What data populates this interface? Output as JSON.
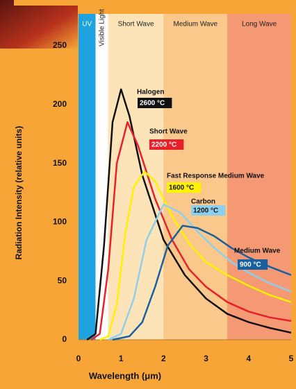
{
  "chart_data": {
    "type": "line",
    "y_label": "Radiation Intensity (relative units)",
    "x_label": "Wavelength (μm)",
    "xlim": [
      0,
      5
    ],
    "xticks": [
      0,
      1,
      2,
      3,
      4,
      5
    ],
    "ylim": [
      0,
      250
    ],
    "yticks": [
      0,
      50,
      100,
      150,
      200,
      250
    ],
    "bands": [
      {
        "label": "UV",
        "from": 0,
        "to": 0.4,
        "color": "#1ea3e0"
      },
      {
        "label": "Visible Light",
        "from": 0.4,
        "to": 0.7,
        "color": "#ffffff"
      },
      {
        "label": "Short Wave",
        "from": 0.7,
        "to": 2,
        "color": "#fde4b8"
      },
      {
        "label": "Medium Wave",
        "from": 2,
        "to": 3.5,
        "color": "#fbc88c"
      },
      {
        "label": "Long Wave",
        "from": 3.5,
        "to": 5,
        "color": "#f59874"
      }
    ],
    "series": [
      {
        "name": "Halogen",
        "temperature": "2600 °C",
        "color": "#111111",
        "x": [
          0.2,
          0.4,
          0.6,
          0.8,
          1.0,
          1.2,
          1.5,
          2.0,
          2.5,
          3.0,
          3.5,
          4.0,
          4.5,
          5.0
        ],
        "values": [
          0,
          5,
          80,
          185,
          213,
          190,
          140,
          85,
          55,
          35,
          22,
          15,
          10,
          6
        ]
      },
      {
        "name": "Short Wave",
        "temperature": "2200 °C",
        "color": "#e8202a",
        "x": [
          0.3,
          0.5,
          0.7,
          0.9,
          1.15,
          1.4,
          1.8,
          2.2,
          2.6,
          3.0,
          3.5,
          4.0,
          4.5,
          5.0
        ],
        "values": [
          0,
          5,
          60,
          150,
          185,
          165,
          120,
          85,
          60,
          45,
          32,
          24,
          19,
          16
        ]
      },
      {
        "name": "Fast Response Medium Wave",
        "temperature": "1600 °C",
        "color": "#fff200",
        "x": [
          0.5,
          0.7,
          0.9,
          1.1,
          1.3,
          1.55,
          1.8,
          2.2,
          2.6,
          3.0,
          3.5,
          4.0,
          4.5,
          5.0
        ],
        "values": [
          0,
          3,
          30,
          90,
          130,
          143,
          135,
          105,
          82,
          66,
          55,
          46,
          38,
          32
        ]
      },
      {
        "name": "Carbon",
        "temperature": "1200 °C",
        "color": "#8ecfee",
        "x": [
          0.7,
          1.0,
          1.3,
          1.6,
          2.0,
          2.4,
          2.8,
          3.2,
          3.6,
          4.0,
          4.5,
          5.0
        ],
        "values": [
          0,
          5,
          35,
          85,
          115,
          108,
          92,
          78,
          66,
          57,
          48,
          41
        ]
      },
      {
        "name": "Medium Wave",
        "temperature": "900 °C",
        "color": "#1a5fa0",
        "x": [
          0.8,
          1.2,
          1.5,
          1.8,
          2.1,
          2.45,
          2.8,
          3.2,
          3.6,
          4.0,
          4.5,
          5.0
        ],
        "values": [
          0,
          3,
          15,
          45,
          80,
          97,
          95,
          88,
          78,
          70,
          62,
          55
        ]
      }
    ]
  }
}
